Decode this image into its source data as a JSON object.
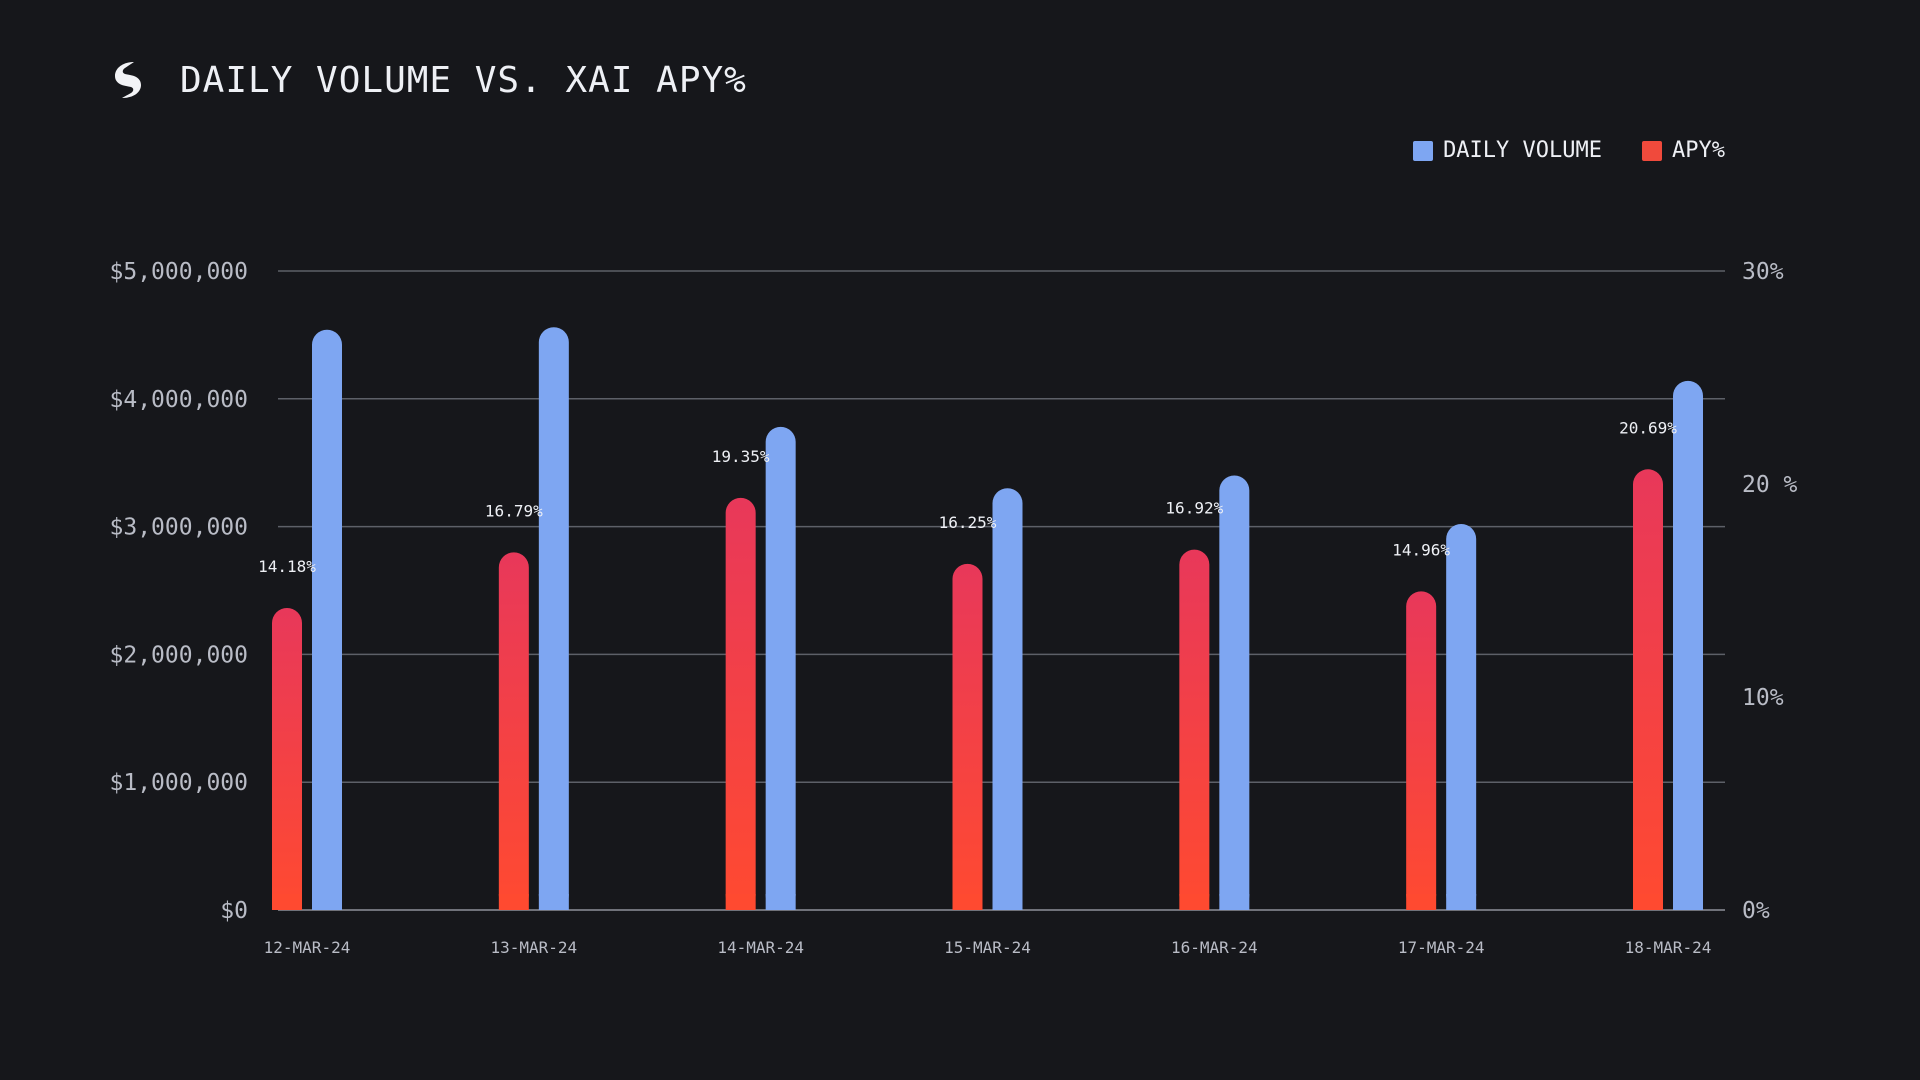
{
  "chart_data": {
    "type": "bar",
    "title": "DAILY VOLUME VS. XAI APY%",
    "categories": [
      "12-MAR-24",
      "13-MAR-24",
      "14-MAR-24",
      "15-MAR-24",
      "16-MAR-24",
      "17-MAR-24",
      "18-MAR-24"
    ],
    "series": [
      {
        "name": "APY%",
        "axis": "right",
        "color": "#f04a3c",
        "values": [
          14.18,
          16.79,
          19.35,
          16.25,
          16.92,
          14.96,
          20.69
        ],
        "labels": [
          "14.18%",
          "16.79%",
          "19.35%",
          "16.25%",
          "16.92%",
          "14.96%",
          "20.69%"
        ]
      },
      {
        "name": "DAILY VOLUME",
        "axis": "left",
        "color": "#7ea6f2",
        "values": [
          4540000,
          4560000,
          3780000,
          3300000,
          3400000,
          3020000,
          4140000
        ]
      }
    ],
    "left_axis": {
      "ylim": [
        0,
        5000000
      ],
      "ticks": [
        {
          "value": 0,
          "label": "$0"
        },
        {
          "value": 1000000,
          "label": "$1,000,000"
        },
        {
          "value": 2000000,
          "label": "$2,000,000"
        },
        {
          "value": 3000000,
          "label": "$3,000,000"
        },
        {
          "value": 4000000,
          "label": "$4,000,000"
        },
        {
          "value": 5000000,
          "label": "$5,000,000"
        }
      ]
    },
    "right_axis": {
      "ylim": [
        0,
        30
      ],
      "ticks": [
        {
          "value": 0,
          "label": "0%"
        },
        {
          "value": 10,
          "label": "10%"
        },
        {
          "value": 20,
          "label": "20 %"
        },
        {
          "value": 30,
          "label": "30%"
        }
      ]
    },
    "legend": [
      {
        "name": "DAILY VOLUME",
        "color": "#7ea6f2"
      },
      {
        "name": "APY%",
        "color": "#f04a3c"
      }
    ],
    "legend_position": "top-right",
    "grid": true
  }
}
